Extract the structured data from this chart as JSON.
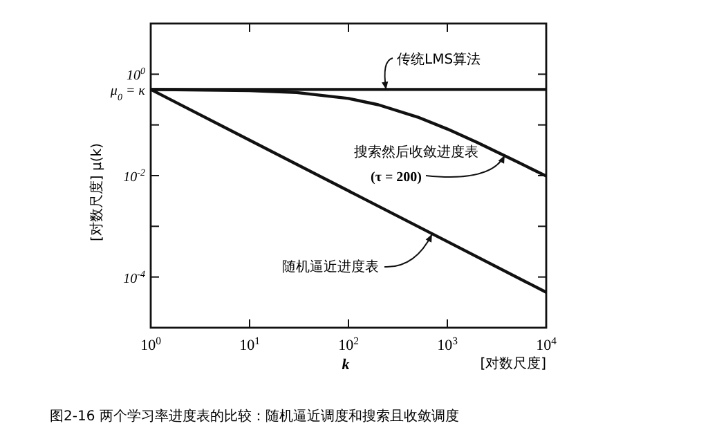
{
  "chart_data": {
    "type": "line",
    "log": "xy",
    "xlabel": "k",
    "ylabel": "[对数尺度]  μ(k)",
    "xlim": [
      1,
      10000
    ],
    "ylim": [
      1e-05,
      10
    ],
    "xticks": [
      {
        "value": 1,
        "label": "10$^{0}$"
      },
      {
        "value": 10,
        "label": "10$^{1}$"
      },
      {
        "value": 100,
        "label": "10$^{2}$"
      },
      {
        "value": 1000,
        "label": "10$^{3}$"
      },
      {
        "value": 10000,
        "label": "10$^{4}$"
      }
    ],
    "yticks": [
      {
        "value": 1,
        "label": "10$^{0}$"
      },
      {
        "value": 0.5,
        "label": "μ$_{0}$ = κ"
      },
      {
        "value": 0.1,
        "label": null
      },
      {
        "value": 0.01,
        "label": "10$^{-2}$"
      },
      {
        "value": 0.001,
        "label": null
      },
      {
        "value": 0.0001,
        "label": "10$^{-4}$"
      }
    ],
    "grid": false,
    "line_style": "solid",
    "series": [
      {
        "color": "#111111",
        "x": [
          1,
          10000
        ],
        "values": [
          0.5,
          0.5
        ]
      },
      {
        "color": "#111111",
        "x": [
          1,
          10,
          30,
          100,
          200,
          500,
          1000,
          2000,
          5000,
          10000
        ],
        "values": [
          0.5,
          0.476,
          0.435,
          0.333,
          0.25,
          0.143,
          0.083,
          0.045,
          0.019,
          0.0098
        ]
      },
      {
        "color": "#111111",
        "x": [
          1,
          10,
          100,
          1000,
          10000
        ],
        "values": [
          0.5,
          0.05,
          0.005,
          0.0005,
          5e-05
        ]
      }
    ],
    "annotations": [
      {
        "text": "传统LMS算法",
        "x": 240,
        "y": 0.5
      },
      "搜索然后收敛进度表",
      {
        "text": "(τ = 200)",
        "x": 3800,
        "y": 0.025
      },
      {
        "text": "随机逼近进度表",
        "x": 700,
        "y": 0.0007
      },
      "[对数尺度]",
      "图2-16  两个学习率进度表的比较：随机逼近调度和搜索且收敛调度"
    ]
  }
}
